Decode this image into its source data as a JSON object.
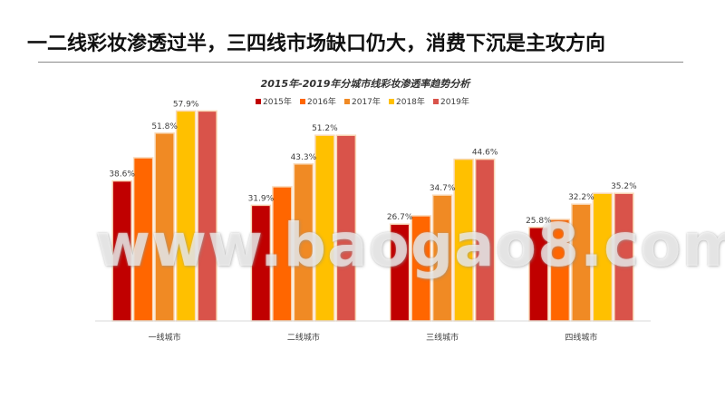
{
  "page": {
    "title": "一二线彩妆渗透过半，三四线市场缺口仍大，消费下沉是主攻方向"
  },
  "watermark": "www.baogao8.com",
  "chart_data": {
    "type": "bar",
    "title": "2015年-2019年分城市线彩妆渗透率趋势分析",
    "xlabel": "",
    "ylabel": "",
    "ylim": [
      0,
      65
    ],
    "grid": false,
    "legend_position": "top",
    "categories": [
      "一线城市",
      "二线城市",
      "三线城市",
      "四线城市"
    ],
    "series": [
      {
        "name": "2015年",
        "color": "#C00000",
        "values": [
          38.6,
          31.9,
          26.7,
          25.8
        ],
        "labels": [
          "38.6%",
          "31.9%",
          "26.7%",
          "25.8%"
        ]
      },
      {
        "name": "2016年",
        "color": "#FF6600",
        "values": [
          45.0,
          37.0,
          29.0,
          28.0
        ],
        "labels": [
          "",
          "",
          "",
          ""
        ]
      },
      {
        "name": "2017年",
        "color": "#F08A24",
        "values": [
          51.8,
          43.3,
          34.7,
          32.2
        ],
        "labels": [
          "51.8%",
          "43.3%",
          "34.7%",
          "32.2%"
        ]
      },
      {
        "name": "2018年",
        "color": "#FFC000",
        "values": [
          57.9,
          51.2,
          44.6,
          35.2
        ],
        "labels": [
          "57.9%",
          "51.2%",
          "",
          ""
        ]
      },
      {
        "name": "2019年",
        "color": "#D9534A",
        "values": [
          57.9,
          51.2,
          44.6,
          35.2
        ],
        "labels": [
          "",
          "",
          "44.6%",
          "35.2%"
        ]
      }
    ]
  }
}
